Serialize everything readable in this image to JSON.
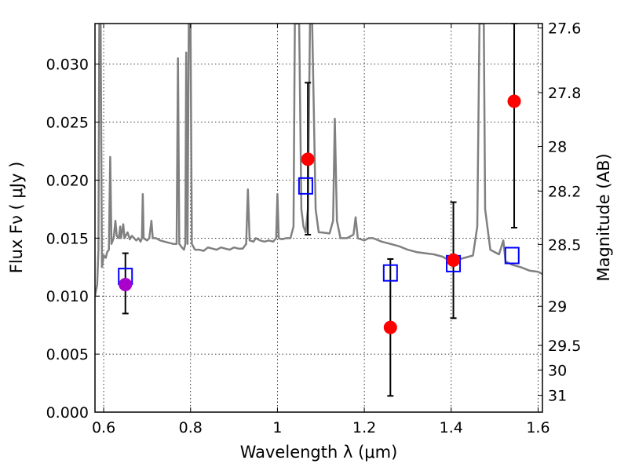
{
  "chart_data": {
    "type": "scatter",
    "xlabel": "Wavelength  λ (μm)",
    "ylabel": "Flux  Fν  ( μJy )",
    "y2label": "Magnitude (AB)",
    "xlim": [
      0.58,
      1.61
    ],
    "ylim": [
      0.0,
      0.0335
    ],
    "grid": true,
    "x_ticks": [
      {
        "v": 0.6,
        "label": "0.6"
      },
      {
        "v": 0.8,
        "label": "0.8"
      },
      {
        "v": 1.0,
        "label": "1"
      },
      {
        "v": 1.2,
        "label": "1.2"
      },
      {
        "v": 1.4,
        "label": "1.4"
      },
      {
        "v": 1.6,
        "label": "1.6"
      }
    ],
    "y_ticks": [
      {
        "v": 0.0,
        "label": "0.000"
      },
      {
        "v": 0.005,
        "label": "0.005"
      },
      {
        "v": 0.01,
        "label": "0.010"
      },
      {
        "v": 0.015,
        "label": "0.015"
      },
      {
        "v": 0.02,
        "label": "0.020"
      },
      {
        "v": 0.025,
        "label": "0.025"
      },
      {
        "v": 0.03,
        "label": "0.030"
      }
    ],
    "y2_ticks": [
      {
        "mag": 27.6,
        "label": "27.6"
      },
      {
        "mag": 27.8,
        "label": "27.8"
      },
      {
        "mag": 28.0,
        "label": "28"
      },
      {
        "mag": 28.2,
        "label": "28.2"
      },
      {
        "mag": 28.5,
        "label": "28.5"
      },
      {
        "mag": 29.0,
        "label": "29"
      },
      {
        "mag": 29.5,
        "label": "29.5"
      },
      {
        "mag": 30.0,
        "label": "30"
      },
      {
        "mag": 31.0,
        "label": "31"
      }
    ],
    "series": [
      {
        "kind": "sed-model-spectrum",
        "color": "#808080",
        "points": [
          [
            0.58,
            0.01
          ],
          [
            0.585,
            0.011
          ],
          [
            0.588,
            0.014
          ],
          [
            0.59,
            0.0335
          ],
          [
            0.593,
            0.0335
          ],
          [
            0.596,
            0.0125
          ],
          [
            0.6,
            0.0135
          ],
          [
            0.605,
            0.0133
          ],
          [
            0.608,
            0.0138
          ],
          [
            0.612,
            0.014
          ],
          [
            0.615,
            0.022
          ],
          [
            0.618,
            0.0145
          ],
          [
            0.623,
            0.015
          ],
          [
            0.627,
            0.0165
          ],
          [
            0.63,
            0.0152
          ],
          [
            0.635,
            0.015
          ],
          [
            0.638,
            0.016
          ],
          [
            0.64,
            0.015
          ],
          [
            0.645,
            0.0162
          ],
          [
            0.648,
            0.015
          ],
          [
            0.655,
            0.0155
          ],
          [
            0.66,
            0.0149
          ],
          [
            0.665,
            0.0152
          ],
          [
            0.67,
            0.015
          ],
          [
            0.675,
            0.0148
          ],
          [
            0.68,
            0.015
          ],
          [
            0.685,
            0.0147
          ],
          [
            0.688,
            0.015
          ],
          [
            0.69,
            0.0188
          ],
          [
            0.692,
            0.015
          ],
          [
            0.7,
            0.0148
          ],
          [
            0.705,
            0.015
          ],
          [
            0.71,
            0.0165
          ],
          [
            0.713,
            0.015
          ],
          [
            0.72,
            0.015
          ],
          [
            0.73,
            0.0148
          ],
          [
            0.74,
            0.0147
          ],
          [
            0.75,
            0.0146
          ],
          [
            0.76,
            0.0145
          ],
          [
            0.768,
            0.0145
          ],
          [
            0.771,
            0.0305
          ],
          [
            0.774,
            0.0145
          ],
          [
            0.78,
            0.0142
          ],
          [
            0.785,
            0.014
          ],
          [
            0.788,
            0.0145
          ],
          [
            0.79,
            0.031
          ],
          [
            0.793,
            0.0145
          ],
          [
            0.796,
            0.0335
          ],
          [
            0.8,
            0.0335
          ],
          [
            0.803,
            0.0145
          ],
          [
            0.81,
            0.014
          ],
          [
            0.82,
            0.014
          ],
          [
            0.83,
            0.0139
          ],
          [
            0.84,
            0.0142
          ],
          [
            0.85,
            0.0141
          ],
          [
            0.86,
            0.014
          ],
          [
            0.87,
            0.0142
          ],
          [
            0.88,
            0.0141
          ],
          [
            0.89,
            0.014
          ],
          [
            0.9,
            0.0142
          ],
          [
            0.91,
            0.0141
          ],
          [
            0.92,
            0.0141
          ],
          [
            0.928,
            0.0145
          ],
          [
            0.932,
            0.0192
          ],
          [
            0.936,
            0.0148
          ],
          [
            0.945,
            0.0147
          ],
          [
            0.95,
            0.015
          ],
          [
            0.96,
            0.0148
          ],
          [
            0.97,
            0.0147
          ],
          [
            0.98,
            0.0148
          ],
          [
            0.99,
            0.0147
          ],
          [
            0.997,
            0.015
          ],
          [
            1.0,
            0.0188
          ],
          [
            1.003,
            0.015
          ],
          [
            1.01,
            0.0149
          ],
          [
            1.02,
            0.015
          ],
          [
            1.03,
            0.015
          ],
          [
            1.037,
            0.016
          ],
          [
            1.04,
            0.0335
          ],
          [
            1.05,
            0.0335
          ],
          [
            1.055,
            0.0175
          ],
          [
            1.06,
            0.016
          ],
          [
            1.065,
            0.0155
          ],
          [
            1.07,
            0.0175
          ],
          [
            1.075,
            0.0335
          ],
          [
            1.08,
            0.0335
          ],
          [
            1.088,
            0.0175
          ],
          [
            1.095,
            0.0155
          ],
          [
            1.1,
            0.0155
          ],
          [
            1.12,
            0.0154
          ],
          [
            1.128,
            0.0165
          ],
          [
            1.132,
            0.0253
          ],
          [
            1.137,
            0.0165
          ],
          [
            1.145,
            0.015
          ],
          [
            1.16,
            0.015
          ],
          [
            1.175,
            0.0153
          ],
          [
            1.18,
            0.0168
          ],
          [
            1.185,
            0.015
          ],
          [
            1.2,
            0.0148
          ],
          [
            1.21,
            0.015
          ],
          [
            1.22,
            0.015
          ],
          [
            1.24,
            0.0147
          ],
          [
            1.26,
            0.0145
          ],
          [
            1.28,
            0.0143
          ],
          [
            1.3,
            0.014
          ],
          [
            1.32,
            0.0138
          ],
          [
            1.34,
            0.0137
          ],
          [
            1.36,
            0.0136
          ],
          [
            1.38,
            0.0134
          ],
          [
            1.39,
            0.0132
          ],
          [
            1.4,
            0.013
          ],
          [
            1.42,
            0.0132
          ],
          [
            1.45,
            0.0135
          ],
          [
            1.46,
            0.016
          ],
          [
            1.465,
            0.0335
          ],
          [
            1.475,
            0.0335
          ],
          [
            1.478,
            0.0175
          ],
          [
            1.49,
            0.014
          ],
          [
            1.5,
            0.0138
          ],
          [
            1.51,
            0.0136
          ],
          [
            1.52,
            0.0148
          ],
          [
            1.525,
            0.013
          ],
          [
            1.54,
            0.0127
          ],
          [
            1.56,
            0.0125
          ],
          [
            1.58,
            0.0122
          ],
          [
            1.6,
            0.0121
          ],
          [
            1.61,
            0.0119
          ]
        ]
      },
      {
        "kind": "model-photometry",
        "marker": "open-square",
        "color": "#0000ff",
        "points": [
          [
            0.65,
            0.0117
          ],
          [
            1.065,
            0.0195
          ],
          [
            1.26,
            0.012
          ],
          [
            1.405,
            0.0128
          ],
          [
            1.54,
            0.0135
          ]
        ]
      },
      {
        "kind": "observed-photometry",
        "marker": "filled-circle",
        "color": "#ff0000",
        "points": [
          {
            "x": 1.07,
            "y": 0.0218,
            "ylo": 0.0153,
            "yhi": 0.0284
          },
          {
            "x": 1.26,
            "y": 0.0073,
            "ylo": 0.0014,
            "yhi": 0.0132
          },
          {
            "x": 1.405,
            "y": 0.0131,
            "ylo": 0.0081,
            "yhi": 0.0181
          },
          {
            "x": 1.545,
            "y": 0.0268,
            "ylo": 0.0159,
            "yhi": 0.0335
          }
        ]
      },
      {
        "kind": "observed-photometry",
        "marker": "filled-circle",
        "color": "#aa00cc",
        "points": [
          {
            "x": 0.65,
            "y": 0.011,
            "ylo": 0.0085,
            "yhi": 0.0137
          }
        ]
      }
    ]
  }
}
